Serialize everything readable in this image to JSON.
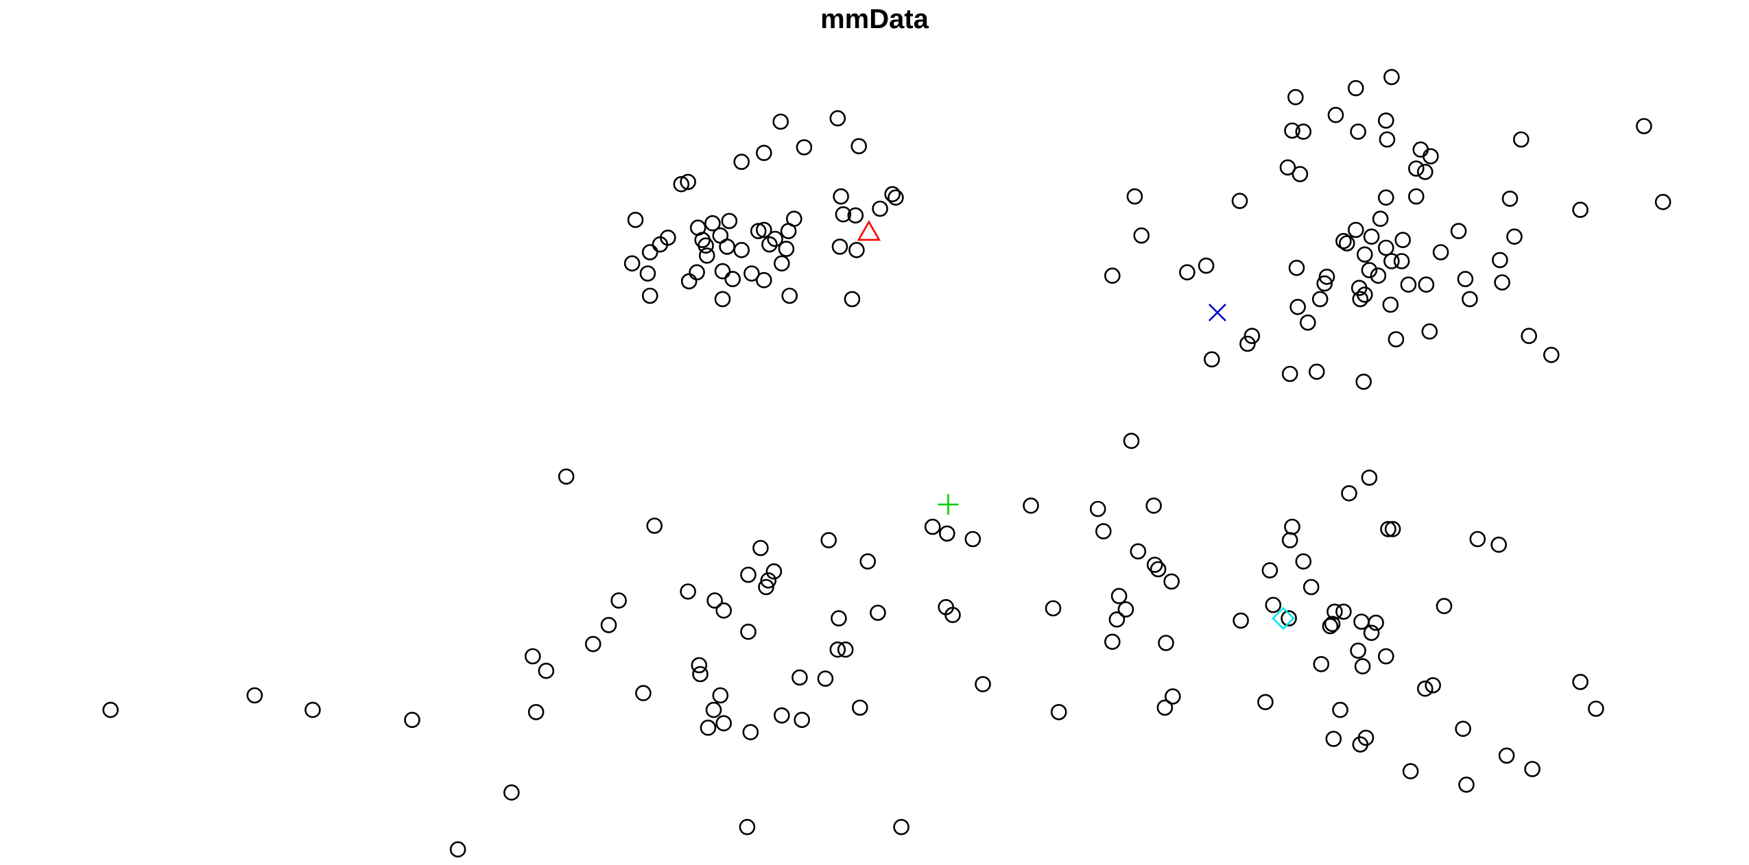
{
  "chart_data": {
    "type": "scatter",
    "title": "mmData",
    "xlabel": "",
    "ylabel": "",
    "axes_visible": false,
    "grid": false,
    "xlim": [
      0,
      1566
    ],
    "ylim": [
      0,
      775
    ],
    "points": [
      [
        569,
        197
      ],
      [
        610,
        165
      ],
      [
        616,
        163
      ],
      [
        664,
        145
      ],
      [
        684,
        137
      ],
      [
        699,
        109
      ],
      [
        720,
        132
      ],
      [
        750,
        106
      ],
      [
        769,
        131
      ],
      [
        598,
        213
      ],
      [
        591,
        219
      ],
      [
        582,
        226
      ],
      [
        566,
        236
      ],
      [
        580,
        245
      ],
      [
        582,
        265
      ],
      [
        617,
        252
      ],
      [
        625,
        204
      ],
      [
        629,
        215
      ],
      [
        632,
        220
      ],
      [
        633,
        229
      ],
      [
        624,
        244
      ],
      [
        638,
        200
      ],
      [
        645,
        211
      ],
      [
        653,
        198
      ],
      [
        651,
        221
      ],
      [
        647,
        243
      ],
      [
        656,
        250
      ],
      [
        647,
        268
      ],
      [
        664,
        224
      ],
      [
        673,
        245
      ],
      [
        679,
        207
      ],
      [
        684,
        206
      ],
      [
        689,
        219
      ],
      [
        694,
        214
      ],
      [
        684,
        251
      ],
      [
        700,
        236
      ],
      [
        704,
        223
      ],
      [
        706,
        207
      ],
      [
        711,
        196
      ],
      [
        707,
        265
      ],
      [
        753,
        176
      ],
      [
        755,
        192
      ],
      [
        766,
        193
      ],
      [
        752,
        221
      ],
      [
        767,
        224
      ],
      [
        763,
        268
      ],
      [
        788,
        187
      ],
      [
        799,
        174
      ],
      [
        802,
        177
      ],
      [
        1016,
        176
      ],
      [
        1022,
        211
      ],
      [
        996,
        247
      ],
      [
        1063,
        244
      ],
      [
        1080,
        238
      ],
      [
        1110,
        180
      ],
      [
        1121,
        301
      ],
      [
        1117,
        308
      ],
      [
        1085,
        322
      ],
      [
        1160,
        87
      ],
      [
        1157,
        117
      ],
      [
        1167,
        118
      ],
      [
        1153,
        150
      ],
      [
        1164,
        156
      ],
      [
        1196,
        103
      ],
      [
        1214,
        79
      ],
      [
        1216,
        118
      ],
      [
        1241,
        108
      ],
      [
        1246,
        69
      ],
      [
        1242,
        125
      ],
      [
        1272,
        134
      ],
      [
        1281,
        140
      ],
      [
        1268,
        151
      ],
      [
        1276,
        154
      ],
      [
        1241,
        177
      ],
      [
        1268,
        176
      ],
      [
        1236,
        196
      ],
      [
        1214,
        206
      ],
      [
        1203,
        216
      ],
      [
        1206,
        218
      ],
      [
        1228,
        212
      ],
      [
        1222,
        228
      ],
      [
        1241,
        222
      ],
      [
        1256,
        215
      ],
      [
        1246,
        234
      ],
      [
        1255,
        234
      ],
      [
        1226,
        242
      ],
      [
        1234,
        247
      ],
      [
        1188,
        248
      ],
      [
        1161,
        240
      ],
      [
        1186,
        254
      ],
      [
        1217,
        258
      ],
      [
        1222,
        264
      ],
      [
        1218,
        268
      ],
      [
        1182,
        268
      ],
      [
        1162,
        275
      ],
      [
        1171,
        289
      ],
      [
        1245,
        273
      ],
      [
        1261,
        255
      ],
      [
        1277,
        255
      ],
      [
        1290,
        226
      ],
      [
        1306,
        207
      ],
      [
        1312,
        250
      ],
      [
        1316,
        268
      ],
      [
        1280,
        297
      ],
      [
        1250,
        304
      ],
      [
        1155,
        335
      ],
      [
        1179,
        333
      ],
      [
        1221,
        342
      ],
      [
        1343,
        233
      ],
      [
        1345,
        253
      ],
      [
        1352,
        178
      ],
      [
        1356,
        212
      ],
      [
        1362,
        125
      ],
      [
        1369,
        301
      ],
      [
        1389,
        318
      ],
      [
        1415,
        188
      ],
      [
        1472,
        113
      ],
      [
        1489,
        181
      ],
      [
        99,
        636
      ],
      [
        228,
        623
      ],
      [
        280,
        636
      ],
      [
        369,
        645
      ],
      [
        410,
        761
      ],
      [
        458,
        710
      ],
      [
        480,
        638
      ],
      [
        477,
        588
      ],
      [
        489,
        601
      ],
      [
        507,
        427
      ],
      [
        531,
        577
      ],
      [
        545,
        560
      ],
      [
        554,
        538
      ],
      [
        576,
        621
      ],
      [
        586,
        471
      ],
      [
        616,
        530
      ],
      [
        626,
        596
      ],
      [
        627,
        604
      ],
      [
        640,
        538
      ],
      [
        648,
        547
      ],
      [
        645,
        623
      ],
      [
        639,
        636
      ],
      [
        634,
        652
      ],
      [
        648,
        648
      ],
      [
        670,
        566
      ],
      [
        670,
        515
      ],
      [
        681,
        491
      ],
      [
        686,
        526
      ],
      [
        688,
        520
      ],
      [
        693,
        512
      ],
      [
        672,
        656
      ],
      [
        669,
        741
      ],
      [
        700,
        641
      ],
      [
        716,
        607
      ],
      [
        718,
        645
      ],
      [
        739,
        608
      ],
      [
        742,
        484
      ],
      [
        751,
        554
      ],
      [
        750,
        582
      ],
      [
        757,
        582
      ],
      [
        770,
        634
      ],
      [
        777,
        503
      ],
      [
        786,
        549
      ],
      [
        807,
        741
      ],
      [
        835,
        472
      ],
      [
        848,
        478
      ],
      [
        847,
        544
      ],
      [
        853,
        551
      ],
      [
        871,
        483
      ],
      [
        880,
        613
      ],
      [
        923,
        453
      ],
      [
        943,
        545
      ],
      [
        948,
        638
      ],
      [
        983,
        456
      ],
      [
        988,
        476
      ],
      [
        996,
        575
      ],
      [
        1000,
        555
      ],
      [
        1002,
        534
      ],
      [
        1008,
        546
      ],
      [
        1013,
        395
      ],
      [
        1019,
        494
      ],
      [
        1033,
        453
      ],
      [
        1034,
        506
      ],
      [
        1037,
        510
      ],
      [
        1049,
        521
      ],
      [
        1044,
        576
      ],
      [
        1043,
        634
      ],
      [
        1050,
        624
      ],
      [
        1111,
        556
      ],
      [
        1133,
        629
      ],
      [
        1137,
        511
      ],
      [
        1140,
        542
      ],
      [
        1154,
        554
      ],
      [
        1157,
        472
      ],
      [
        1155,
        484
      ],
      [
        1167,
        503
      ],
      [
        1174,
        526
      ],
      [
        1183,
        595
      ],
      [
        1191,
        561
      ],
      [
        1195,
        548
      ],
      [
        1193,
        559
      ],
      [
        1203,
        548
      ],
      [
        1200,
        636
      ],
      [
        1194,
        662
      ],
      [
        1208,
        442
      ],
      [
        1226,
        428
      ],
      [
        1219,
        557
      ],
      [
        1232,
        558
      ],
      [
        1228,
        567
      ],
      [
        1216,
        583
      ],
      [
        1220,
        597
      ],
      [
        1241,
        588
      ],
      [
        1218,
        667
      ],
      [
        1223,
        661
      ],
      [
        1243,
        474
      ],
      [
        1247,
        474
      ],
      [
        1263,
        691
      ],
      [
        1276,
        617
      ],
      [
        1283,
        614
      ],
      [
        1293,
        543
      ],
      [
        1310,
        653
      ],
      [
        1313,
        703
      ],
      [
        1323,
        483
      ],
      [
        1342,
        488
      ],
      [
        1349,
        677
      ],
      [
        1372,
        689
      ],
      [
        1415,
        611
      ],
      [
        1429,
        635
      ]
    ],
    "special_markers": [
      {
        "shape": "triangle",
        "color": "#ff0000",
        "x": 778,
        "y": 208
      },
      {
        "shape": "cross-x",
        "color": "#0000cd",
        "x": 1090,
        "y": 280
      },
      {
        "shape": "plus",
        "color": "#00cd00",
        "x": 849,
        "y": 452
      },
      {
        "shape": "diamond",
        "color": "#00e5ee",
        "x": 1149,
        "y": 554
      }
    ],
    "point_color": "#000000"
  }
}
